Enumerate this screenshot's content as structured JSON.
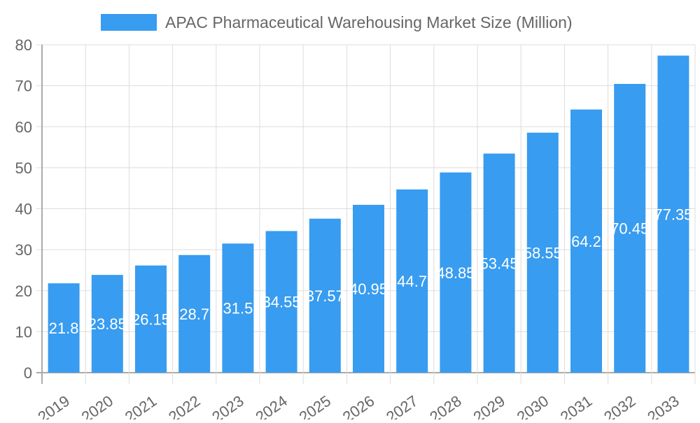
{
  "chart_data": {
    "type": "bar",
    "title": "",
    "xlabel": "",
    "ylabel": "",
    "legend": {
      "position": "top",
      "entries": [
        "APAC Pharmaceutical Warehousing Market Size (Million)"
      ]
    },
    "series": [
      {
        "name": "APAC Pharmaceutical Warehousing Market Size (Million)",
        "color": "#389cf0",
        "values": [
          21.8,
          23.85,
          26.15,
          28.7,
          31.5,
          34.55,
          37.57,
          40.95,
          44.7,
          48.85,
          53.45,
          58.55,
          64.2,
          70.45,
          77.35
        ]
      }
    ],
    "categories": [
      "2019",
      "2020",
      "2021",
      "2022",
      "2023",
      "2024",
      "2025",
      "2026",
      "2027",
      "2028",
      "2029",
      "2030",
      "2031",
      "2032",
      "2033"
    ],
    "data_labels": [
      "21.8",
      "23.85",
      "26.15",
      "28.7",
      "31.5",
      "34.55",
      "37.57",
      "40.95",
      "44.7",
      "48.85",
      "53.45",
      "58.55",
      "64.2",
      "70.45",
      "77.35"
    ],
    "ylim": [
      0,
      80
    ],
    "yticks": [
      "0",
      "10",
      "20",
      "30",
      "40",
      "50",
      "60",
      "70",
      "80"
    ],
    "grid": true
  }
}
